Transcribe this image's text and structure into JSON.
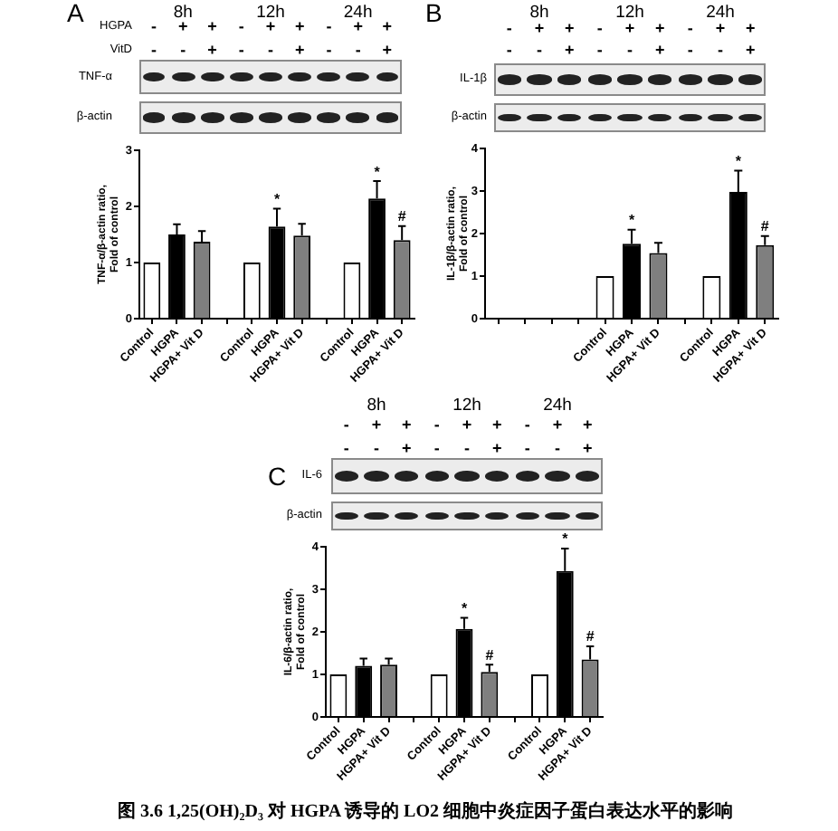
{
  "chart_data": [
    {
      "type": "bar",
      "title": "A",
      "ylabel": "TNF-α/β-actin ratio,\nFold of control",
      "categories": [
        "Control",
        "HGPA",
        "HGPA+ Vit D",
        null,
        "Control",
        "HGPA",
        "HGPA+ Vit D",
        null,
        "Control",
        "HGPA",
        "HGPA+ Vit D"
      ],
      "values": [
        1.0,
        1.5,
        1.37,
        null,
        1.0,
        1.64,
        1.48,
        null,
        1.0,
        2.14,
        1.4
      ],
      "colors": [
        "#ffffff",
        "#000000",
        "#7f7f7f",
        null,
        "#ffffff",
        "#000000",
        "#7f7f7f",
        null,
        "#ffffff",
        "#000000",
        "#7f7f7f"
      ],
      "errors": [
        null,
        0.18,
        0.19,
        null,
        null,
        0.32,
        0.21,
        null,
        null,
        0.31,
        0.25
      ],
      "value_labels": [
        null,
        null,
        null,
        null,
        null,
        "*",
        null,
        null,
        null,
        "*",
        "#"
      ],
      "ylim": [
        0,
        3
      ],
      "yticks": [
        0,
        1,
        2,
        3
      ],
      "annotations": [
        "8h",
        "12h",
        "24h",
        "HGPA - + + - + + - + +",
        "VitD - - + - - + - - +",
        "TNF-α",
        "β-actin"
      ]
    },
    {
      "type": "bar",
      "title": "B",
      "ylabel": "IL-1β/β-actin ratio,\nFold of control",
      "categories": [
        null,
        null,
        null,
        null,
        "Control",
        "HGPA",
        "HGPA+ Vit D",
        null,
        "Control",
        "HGPA",
        "HGPA+ Vit D"
      ],
      "values": [
        null,
        null,
        null,
        null,
        1.0,
        1.76,
        1.54,
        null,
        1.0,
        2.98,
        1.73
      ],
      "colors": [
        null,
        null,
        null,
        null,
        "#ffffff",
        "#000000",
        "#7f7f7f",
        null,
        "#ffffff",
        "#000000",
        "#7f7f7f"
      ],
      "errors": [
        null,
        null,
        null,
        null,
        null,
        0.33,
        0.24,
        null,
        null,
        0.5,
        0.21
      ],
      "value_labels": [
        null,
        null,
        null,
        null,
        null,
        "*",
        null,
        null,
        null,
        "*",
        "#"
      ],
      "ylim": [
        0,
        4
      ],
      "yticks": [
        0,
        1,
        2,
        3,
        4
      ],
      "annotations": [
        "8h",
        "12h",
        "24h",
        "- + + - + + - + +",
        "- - + - - + - - +",
        "IL-1β",
        "β-actin"
      ]
    },
    {
      "type": "bar",
      "title": "C",
      "ylabel": "IL-6/β-actin ratio,\nFold of control",
      "categories": [
        "Control",
        "HGPA",
        "HGPA+ Vit D",
        null,
        "Control",
        "HGPA",
        "HGPA+ Vit D",
        null,
        "Control",
        "HGPA",
        "HGPA+ Vit D"
      ],
      "values": [
        1.0,
        1.2,
        1.23,
        null,
        1.0,
        2.07,
        1.06,
        null,
        1.0,
        3.43,
        1.35
      ],
      "colors": [
        "#ffffff",
        "#000000",
        "#7f7f7f",
        null,
        "#ffffff",
        "#000000",
        "#7f7f7f",
        null,
        "#ffffff",
        "#000000",
        "#7f7f7f"
      ],
      "errors": [
        null,
        0.17,
        0.14,
        null,
        null,
        0.26,
        0.17,
        null,
        null,
        0.53,
        0.31
      ],
      "value_labels": [
        null,
        null,
        null,
        null,
        null,
        "*",
        "#",
        null,
        null,
        "*",
        "#"
      ],
      "ylim": [
        0,
        4
      ],
      "yticks": [
        0,
        1,
        2,
        3,
        4
      ],
      "annotations": [
        "8h",
        "12h",
        "24h",
        "- + + - + + - + +",
        "- - + - - + - - +",
        "IL-6",
        "β-actin",
        "图 3.6 1,25(OH)₂D₃ 对 HGPA 诱导的 LO2 细胞中炎症因子蛋白表达水平的影响"
      ]
    }
  ]
}
